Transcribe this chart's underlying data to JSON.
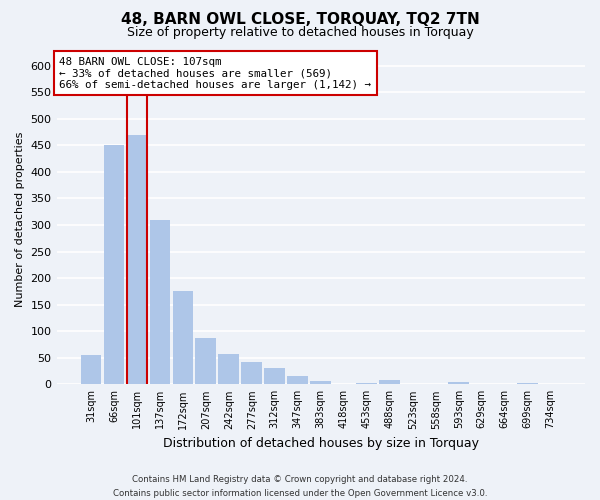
{
  "title": "48, BARN OWL CLOSE, TORQUAY, TQ2 7TN",
  "subtitle": "Size of property relative to detached houses in Torquay",
  "xlabel": "Distribution of detached houses by size in Torquay",
  "ylabel": "Number of detached properties",
  "bar_values": [
    55,
    450,
    470,
    310,
    175,
    88,
    57,
    42,
    30,
    15,
    6,
    1,
    2,
    8,
    1,
    0,
    4,
    0,
    0,
    2,
    1
  ],
  "bar_labels": [
    "31sqm",
    "66sqm",
    "101sqm",
    "137sqm",
    "172sqm",
    "207sqm",
    "242sqm",
    "277sqm",
    "312sqm",
    "347sqm",
    "383sqm",
    "418sqm",
    "453sqm",
    "488sqm",
    "523sqm",
    "558sqm",
    "593sqm",
    "629sqm",
    "664sqm",
    "699sqm",
    "734sqm"
  ],
  "bar_color": "#aec6e8",
  "highlight_bar_index": 2,
  "highlight_color": "#cc0000",
  "ylim": [
    0,
    620
  ],
  "yticks": [
    0,
    50,
    100,
    150,
    200,
    250,
    300,
    350,
    400,
    450,
    500,
    550,
    600
  ],
  "annotation_line1": "48 BARN OWL CLOSE: 107sqm",
  "annotation_line2": "← 33% of detached houses are smaller (569)",
  "annotation_line3": "66% of semi-detached houses are larger (1,142) →",
  "annotation_box_color": "#ffffff",
  "annotation_box_edge": "#cc0000",
  "footer_line1": "Contains HM Land Registry data © Crown copyright and database right 2024.",
  "footer_line2": "Contains public sector information licensed under the Open Government Licence v3.0.",
  "background_color": "#eef2f8",
  "grid_color": "#ffffff",
  "fig_width": 6.0,
  "fig_height": 5.0
}
